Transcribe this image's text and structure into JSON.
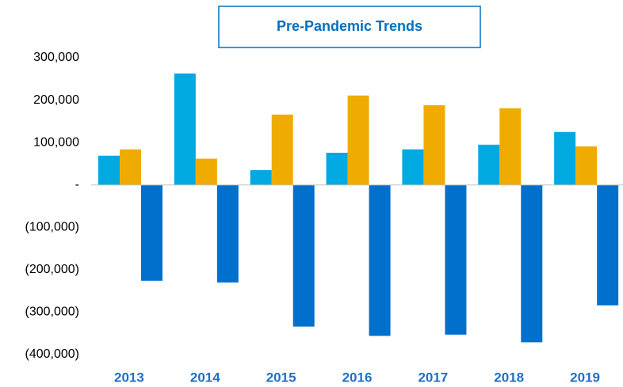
{
  "chart_data": {
    "type": "bar",
    "title": "Pre-Pandemic Trends",
    "categories": [
      "2013",
      "2014",
      "2015",
      "2016",
      "2017",
      "2018",
      "2019"
    ],
    "series": [
      {
        "color": "#00a9e0",
        "values": [
          69000,
          263000,
          35000,
          76000,
          84000,
          95000,
          125000
        ]
      },
      {
        "color": "#f0ab00",
        "values": [
          84000,
          62000,
          166000,
          211000,
          188000,
          181000,
          91000
        ]
      },
      {
        "color": "#0070cd",
        "values": [
          -226000,
          -230000,
          -334000,
          -356000,
          -353000,
          -371000,
          -284000
        ]
      }
    ],
    "ylim": [
      -400000,
      300000
    ],
    "yticks": [
      {
        "value": -400000,
        "label": "(400,000)"
      },
      {
        "value": -300000,
        "label": "(300,000)"
      },
      {
        "value": -200000,
        "label": "(200,000)"
      },
      {
        "value": -100000,
        "label": "(100,000)"
      },
      {
        "value": 0,
        "label": "-"
      },
      {
        "value": 100000,
        "label": "100,000"
      },
      {
        "value": 200000,
        "label": "200,000"
      },
      {
        "value": 300000,
        "label": "300,000"
      }
    ],
    "grid": false
  }
}
